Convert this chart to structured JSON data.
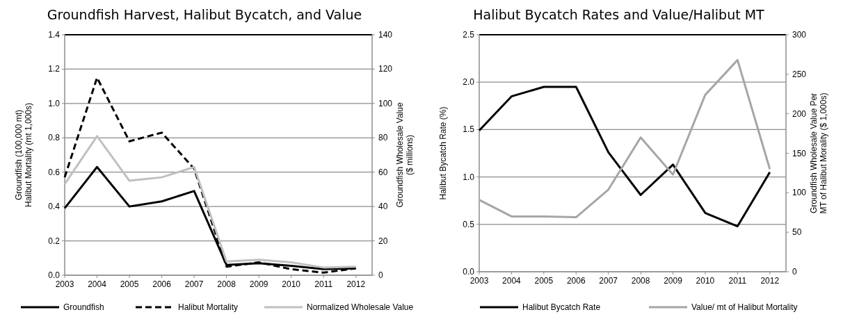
{
  "chart_data": [
    {
      "type": "line",
      "title": "Groundfish Harvest, Halibut Bycatch, and Value",
      "ylabel": "Groundfish (100,000 mt)\nHalibut Mortality (mt 1,000s)",
      "y2label": "Groundfish Wholesale Value\n($ millions)",
      "categories": [
        "2003",
        "2004",
        "2005",
        "2006",
        "2007",
        "2008",
        "2009",
        "2010",
        "2011",
        "2012"
      ],
      "series": [
        {
          "name": "Groundfish",
          "color": "#000000",
          "line_style": "solid",
          "values": [
            0.39,
            0.63,
            0.4,
            0.43,
            0.49,
            0.06,
            0.07,
            0.055,
            0.035,
            0.04
          ]
        },
        {
          "name": "Halibut Mortality",
          "color": "#000000",
          "line_style": "dashed",
          "values": [
            0.57,
            1.15,
            0.78,
            0.83,
            0.62,
            0.05,
            0.075,
            0.035,
            0.015,
            0.04
          ]
        },
        {
          "name": "Normalized Wholesale Value",
          "color": "#c0c0c0",
          "line_style": "solid",
          "axis": "y2",
          "values": [
            53,
            81,
            55,
            57,
            63,
            8,
            9,
            7.5,
            4.5,
            5
          ]
        }
      ],
      "ylim": [
        0,
        1.4
      ],
      "yticks": [
        {
          "value": 0,
          "label": "0.0"
        },
        0.2,
        0.4,
        0.6,
        0.8,
        {
          "value": 1,
          "label": "1.0"
        },
        1.2,
        1.4
      ],
      "y2lim": [
        0,
        140
      ],
      "y2ticks": [
        0,
        20,
        40,
        60,
        80,
        100,
        120,
        140
      ],
      "grid": "y",
      "legend": "bottom",
      "marker": "none"
    },
    {
      "type": "line",
      "title": "Halibut Bycatch Rates and Value/Halibut MT",
      "ylabel": "Halibut Bycatch Rate (%)",
      "y2label": "Groundfish Wholesale Value Per\nMT of Halibut Morality ($ 1,000s)",
      "categories": [
        "2003",
        "2004",
        "2005",
        "2006",
        "2007",
        "2008",
        "2009",
        "2010",
        "2011",
        "2012"
      ],
      "series": [
        {
          "name": "Halibut Bycatch Rate",
          "color": "#000000",
          "line_style": "solid",
          "values": [
            1.49,
            1.85,
            1.95,
            1.95,
            1.26,
            0.81,
            1.13,
            0.62,
            0.48,
            1.05
          ]
        },
        {
          "name": "Value/ mt of Halibut Mortality",
          "color": "#a6a6a6",
          "line_style": "solid",
          "axis": "y2",
          "values": [
            91,
            70,
            70,
            69,
            104,
            170,
            123,
            224,
            268,
            130
          ]
        }
      ],
      "ylim": [
        0,
        2.5
      ],
      "yticks": [
        {
          "value": 0,
          "label": "0.0"
        },
        0.5,
        {
          "value": 1,
          "label": "1.0"
        },
        1.5,
        {
          "value": 2,
          "label": "2.0"
        },
        2.5
      ],
      "y2lim": [
        0,
        300
      ],
      "y2ticks": [
        0,
        50,
        100,
        150,
        200,
        250,
        300
      ],
      "grid": "y",
      "legend": "bottom",
      "marker": "none"
    }
  ]
}
